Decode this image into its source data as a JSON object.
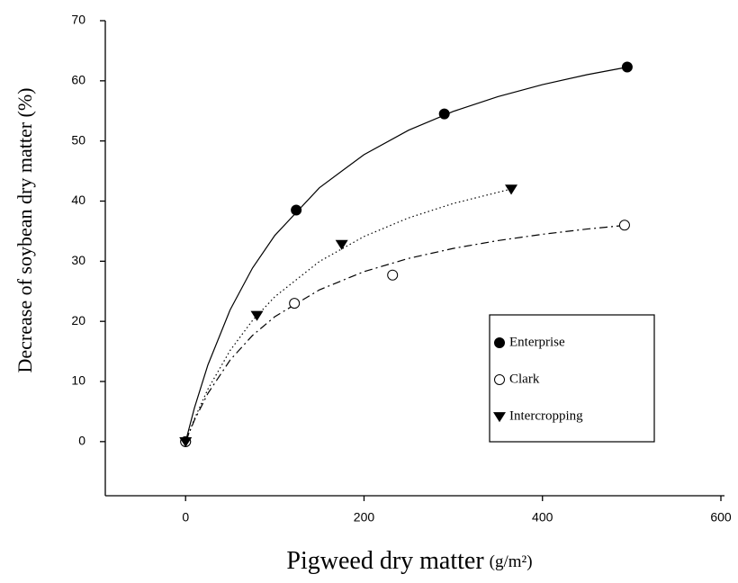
{
  "chart_data": {
    "type": "scatter",
    "xlabel": "Pigweed dry matter",
    "xlabel_unit": "(g/m²)",
    "ylabel": "Decrease of soybean dry matter (%)",
    "xlim": [
      -90,
      600
    ],
    "ylim": [
      -9,
      70
    ],
    "xticks": [
      0,
      200,
      400,
      600
    ],
    "yticks": [
      0,
      10,
      20,
      30,
      40,
      50,
      60,
      70
    ],
    "legend": "lower right",
    "series": [
      {
        "name": "Enterprise",
        "color": "#000000",
        "marker": "filled-circle",
        "line_style": "solid",
        "x": [
          0,
          124,
          290,
          495
        ],
        "values": [
          0,
          38.5,
          54.5,
          62.3
        ],
        "fit_x": [
          0,
          10,
          25,
          50,
          75,
          100,
          150,
          200,
          250,
          300,
          350,
          400,
          450,
          495
        ],
        "fit_values": [
          0,
          5.65,
          12.75,
          21.94,
          28.87,
          34.29,
          42.22,
          47.73,
          51.79,
          54.91,
          57.37,
          59.37,
          61.02,
          62.28
        ]
      },
      {
        "name": "Clark",
        "color": "#000000",
        "marker": "open-circle",
        "line_style": "dash-dot",
        "x": [
          0,
          122,
          232,
          492
        ],
        "values": [
          0,
          23,
          27.7,
          36
        ],
        "fit_x": [
          0,
          10,
          25,
          50,
          75,
          100,
          150,
          200,
          250,
          300,
          350,
          400,
          450,
          492
        ],
        "fit_values": [
          0,
          3.6,
          8.02,
          13.58,
          17.66,
          20.78,
          25.24,
          28.27,
          30.47,
          32.13,
          33.43,
          34.48,
          35.35,
          35.96
        ]
      },
      {
        "name": "Intercropping",
        "color": "#000000",
        "marker": "down-triangle",
        "line_style": "dotted",
        "x": [
          0,
          80,
          175,
          365
        ],
        "values": [
          0,
          21,
          32.8,
          42
        ],
        "fit_x": [
          0,
          10,
          25,
          50,
          75,
          100,
          150,
          200,
          250,
          300,
          365
        ],
        "fit_values": [
          0,
          3.83,
          8.72,
          15.18,
          20.15,
          24.09,
          29.96,
          34.11,
          37.21,
          39.6,
          42.01
        ]
      }
    ]
  }
}
